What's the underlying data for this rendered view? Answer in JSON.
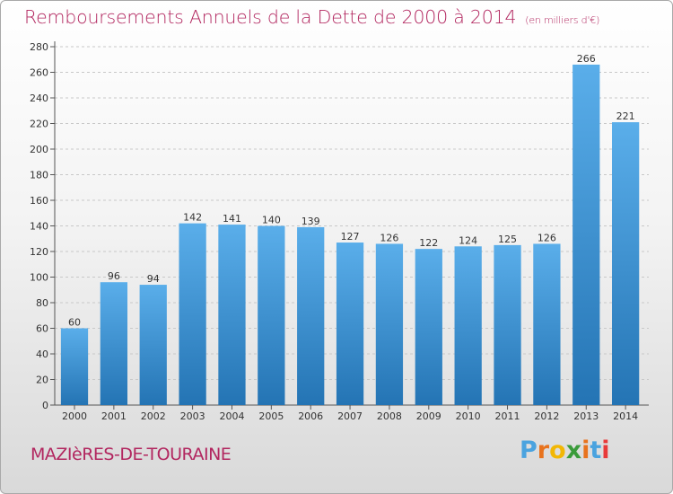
{
  "header": {
    "title": "Remboursements Annuels de la Dette de 2000 à 2014",
    "subtitle": "(en milliers d'€)"
  },
  "footer": {
    "commune": "MAZIèRES-DE-TOURAINE",
    "logo_text": "Proxiti"
  },
  "colors": {
    "title": "#b2265f",
    "bar_light": "#5aaeea",
    "bar_dark": "#2474b4",
    "logo_letters": [
      "#4aa3df",
      "#e8731e",
      "#f2b705",
      "#3a9b3a",
      "#e8731e",
      "#4aa3df",
      "#e83a3a"
    ]
  },
  "chart_data": {
    "type": "bar",
    "categories": [
      "2000",
      "2001",
      "2002",
      "2003",
      "2004",
      "2005",
      "2006",
      "2007",
      "2008",
      "2009",
      "2010",
      "2011",
      "2012",
      "2013",
      "2014"
    ],
    "values": [
      60,
      96,
      94,
      142,
      141,
      140,
      139,
      127,
      126,
      122,
      124,
      125,
      126,
      266,
      221
    ],
    "title": "Remboursements Annuels de la Dette de 2000 à 2014",
    "xlabel": "",
    "ylabel": "",
    "ylim": [
      0,
      280
    ],
    "yticks": [
      0,
      20,
      40,
      60,
      80,
      100,
      120,
      140,
      160,
      180,
      200,
      220,
      240,
      260,
      280
    ],
    "grid": true,
    "data_labels": true
  }
}
